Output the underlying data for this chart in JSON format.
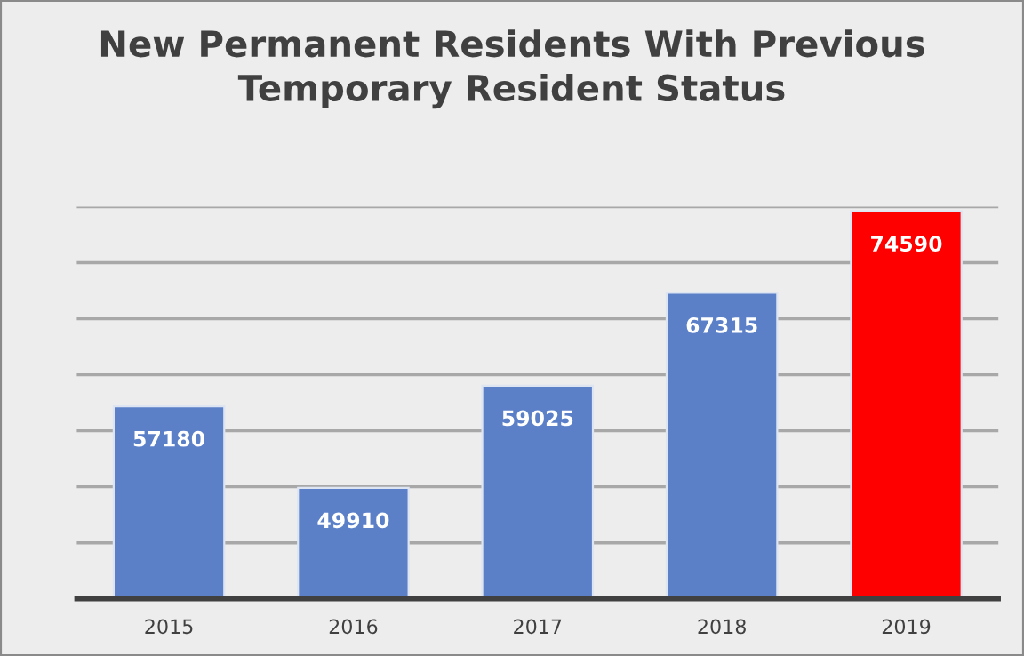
{
  "chart_data": {
    "type": "bar",
    "title": "New Permanent Residents With Previous\nTemporary Resident Status",
    "categories": [
      "2015",
      "2016",
      "2017",
      "2018",
      "2019"
    ],
    "values": [
      57180,
      49910,
      59025,
      67315,
      74590
    ],
    "colors": [
      "#5b80c8",
      "#5b80c8",
      "#5b80c8",
      "#5b80c8",
      "#ff0000"
    ],
    "ylim": [
      40000,
      75000
    ],
    "yticks": [
      {
        "value": 45000,
        "label": null
      },
      {
        "value": 50000,
        "label": null
      },
      {
        "value": 55000,
        "label": null
      },
      {
        "value": 60000,
        "label": null
      },
      {
        "value": 65000,
        "label": null
      },
      {
        "value": 70000,
        "label": null
      },
      {
        "value": 75000,
        "label": null
      }
    ],
    "grid": "y",
    "tick_labels": "x",
    "data_labels": true
  }
}
